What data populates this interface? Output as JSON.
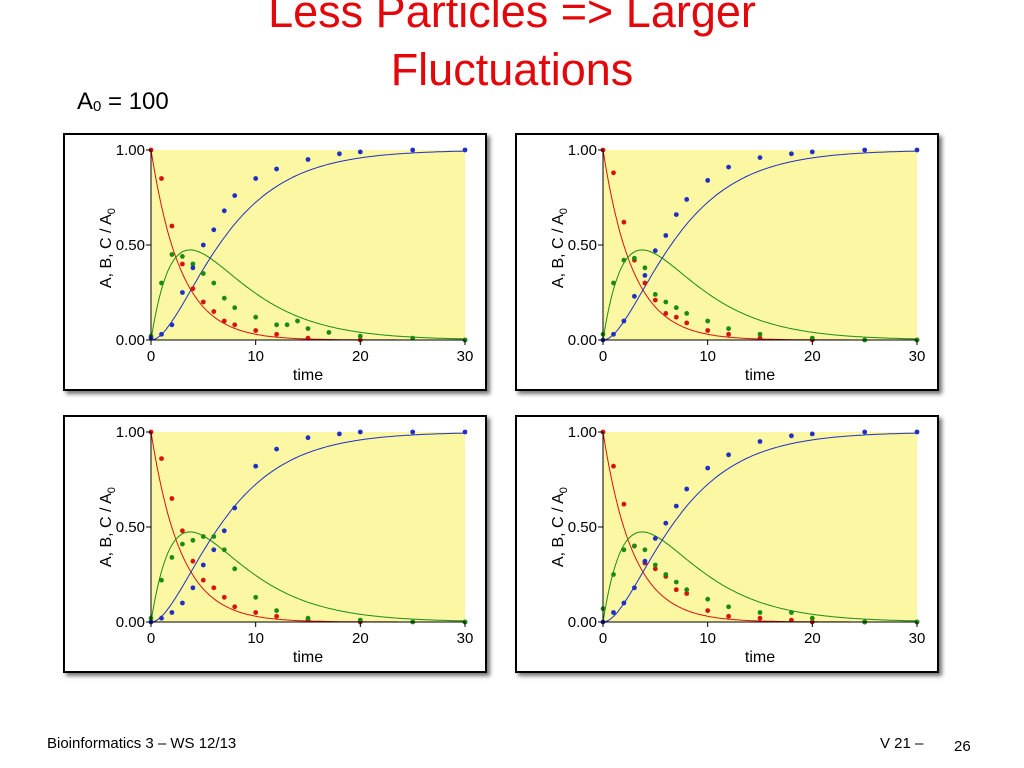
{
  "slide": {
    "title_line1": "Less Particles => Larger",
    "title_line2": "Fluctuations",
    "param_base": "A",
    "param_sub": "0",
    "param_rest": " = 100",
    "footer_left": "Bioinformatics 3 – WS 12/13",
    "footer_right": "V 21  –",
    "page_number": "26"
  },
  "colors": {
    "title": "#e3070b",
    "plot_bg": "#fbf7a3",
    "A": "#d8120f",
    "B": "#1a8c12",
    "C": "#1f2fc8"
  },
  "chart_data": [
    {
      "type": "scatter",
      "xlabel": "time",
      "ylabel_text": "A, B, C / A",
      "ylabel_sub": "0",
      "xlim": [
        0,
        30
      ],
      "ylim": [
        0,
        1
      ],
      "x_ticks": [
        "0",
        "10",
        "20",
        "30"
      ],
      "y_ticks": [
        "0.00",
        "0.50",
        "1.00"
      ],
      "series": [
        {
          "key": "A",
          "x": [
            0,
            1,
            2,
            3,
            4,
            5,
            6,
            7,
            8,
            10,
            12,
            15,
            20,
            30
          ],
          "values": [
            1.0,
            0.85,
            0.6,
            0.4,
            0.27,
            0.2,
            0.15,
            0.1,
            0.08,
            0.05,
            0.03,
            0.01,
            0.0,
            0.0
          ]
        },
        {
          "key": "B",
          "x": [
            0,
            1,
            2,
            3,
            4,
            5,
            6,
            7,
            8,
            10,
            12,
            13,
            14,
            15,
            17,
            20,
            25,
            30
          ],
          "values": [
            0.02,
            0.3,
            0.45,
            0.44,
            0.4,
            0.35,
            0.3,
            0.22,
            0.17,
            0.12,
            0.08,
            0.08,
            0.1,
            0.06,
            0.04,
            0.02,
            0.01,
            0.0
          ]
        },
        {
          "key": "C",
          "x": [
            0,
            1,
            2,
            3,
            4,
            5,
            6,
            7,
            8,
            10,
            12,
            15,
            18,
            20,
            25,
            30
          ],
          "values": [
            0.01,
            0.03,
            0.08,
            0.25,
            0.38,
            0.5,
            0.58,
            0.68,
            0.76,
            0.85,
            0.9,
            0.95,
            0.98,
            0.99,
            1.0,
            1.0
          ]
        }
      ]
    },
    {
      "type": "scatter",
      "xlabel": "time",
      "ylabel_text": "A, B, C / A",
      "ylabel_sub": "0",
      "xlim": [
        0,
        30
      ],
      "ylim": [
        0,
        1
      ],
      "x_ticks": [
        "0",
        "10",
        "20",
        "30"
      ],
      "y_ticks": [
        "0.00",
        "0.50",
        "1.00"
      ],
      "series": [
        {
          "key": "A",
          "x": [
            0,
            1,
            2,
            3,
            4,
            5,
            6,
            7,
            8,
            10,
            12,
            15,
            20,
            30
          ],
          "values": [
            1.0,
            0.88,
            0.62,
            0.42,
            0.3,
            0.21,
            0.14,
            0.12,
            0.09,
            0.05,
            0.03,
            0.01,
            0.0,
            0.0
          ]
        },
        {
          "key": "B",
          "x": [
            0,
            1,
            2,
            3,
            4,
            5,
            6,
            7,
            8,
            10,
            12,
            15,
            20,
            25,
            30
          ],
          "values": [
            0.03,
            0.3,
            0.42,
            0.43,
            0.38,
            0.24,
            0.2,
            0.17,
            0.14,
            0.1,
            0.06,
            0.03,
            0.01,
            0.0,
            0.0
          ]
        },
        {
          "key": "C",
          "x": [
            0,
            1,
            2,
            3,
            4,
            5,
            6,
            7,
            8,
            10,
            12,
            15,
            18,
            20,
            25,
            30
          ],
          "values": [
            0.0,
            0.03,
            0.1,
            0.23,
            0.34,
            0.47,
            0.55,
            0.66,
            0.74,
            0.84,
            0.91,
            0.96,
            0.98,
            0.99,
            1.0,
            1.0
          ]
        }
      ]
    },
    {
      "type": "scatter",
      "xlabel": "time",
      "ylabel_text": "A, B, C / A",
      "ylabel_sub": "0",
      "xlim": [
        0,
        30
      ],
      "ylim": [
        0,
        1
      ],
      "x_ticks": [
        "0",
        "10",
        "20",
        "30"
      ],
      "y_ticks": [
        "0.00",
        "0.50",
        "1.00"
      ],
      "series": [
        {
          "key": "A",
          "x": [
            0,
            1,
            2,
            3,
            4,
            5,
            6,
            7,
            8,
            10,
            12,
            15,
            20,
            30
          ],
          "values": [
            1.0,
            0.86,
            0.65,
            0.48,
            0.32,
            0.22,
            0.18,
            0.13,
            0.08,
            0.05,
            0.03,
            0.01,
            0.0,
            0.0
          ]
        },
        {
          "key": "B",
          "x": [
            0,
            1,
            2,
            3,
            4,
            5,
            6,
            7,
            8,
            10,
            12,
            15,
            20,
            25,
            30
          ],
          "values": [
            0.02,
            0.22,
            0.34,
            0.41,
            0.43,
            0.45,
            0.45,
            0.38,
            0.28,
            0.13,
            0.06,
            0.02,
            0.01,
            0.0,
            0.0
          ]
        },
        {
          "key": "C",
          "x": [
            0,
            1,
            2,
            3,
            4,
            5,
            6,
            7,
            8,
            10,
            12,
            15,
            18,
            20,
            25,
            30
          ],
          "values": [
            0.0,
            0.02,
            0.05,
            0.1,
            0.18,
            0.3,
            0.38,
            0.48,
            0.6,
            0.82,
            0.91,
            0.97,
            0.99,
            1.0,
            1.0,
            1.0
          ]
        }
      ]
    },
    {
      "type": "scatter",
      "xlabel": "time",
      "ylabel_text": "A, B, C / A",
      "ylabel_sub": "0",
      "xlim": [
        0,
        30
      ],
      "ylim": [
        0,
        1
      ],
      "x_ticks": [
        "0",
        "10",
        "20",
        "30"
      ],
      "y_ticks": [
        "0.00",
        "0.50",
        "1.00"
      ],
      "series": [
        {
          "key": "A",
          "x": [
            0,
            1,
            2,
            3,
            4,
            5,
            6,
            7,
            8,
            10,
            12,
            15,
            18,
            20,
            25,
            30
          ],
          "values": [
            1.0,
            0.82,
            0.62,
            0.4,
            0.31,
            0.28,
            0.24,
            0.17,
            0.15,
            0.06,
            0.03,
            0.02,
            0.01,
            0.0,
            0.0,
            0.0
          ]
        },
        {
          "key": "B",
          "x": [
            0,
            1,
            2,
            3,
            4,
            5,
            6,
            7,
            8,
            10,
            12,
            15,
            18,
            20,
            25,
            30
          ],
          "values": [
            0.07,
            0.25,
            0.38,
            0.4,
            0.38,
            0.3,
            0.25,
            0.21,
            0.17,
            0.12,
            0.08,
            0.05,
            0.05,
            0.02,
            0.0,
            0.0
          ]
        },
        {
          "key": "C",
          "x": [
            0,
            1,
            2,
            3,
            4,
            5,
            6,
            7,
            8,
            10,
            12,
            15,
            18,
            20,
            25,
            30
          ],
          "values": [
            0.0,
            0.05,
            0.1,
            0.18,
            0.32,
            0.44,
            0.52,
            0.61,
            0.7,
            0.81,
            0.88,
            0.95,
            0.98,
            0.99,
            1.0,
            1.0
          ]
        }
      ]
    }
  ]
}
